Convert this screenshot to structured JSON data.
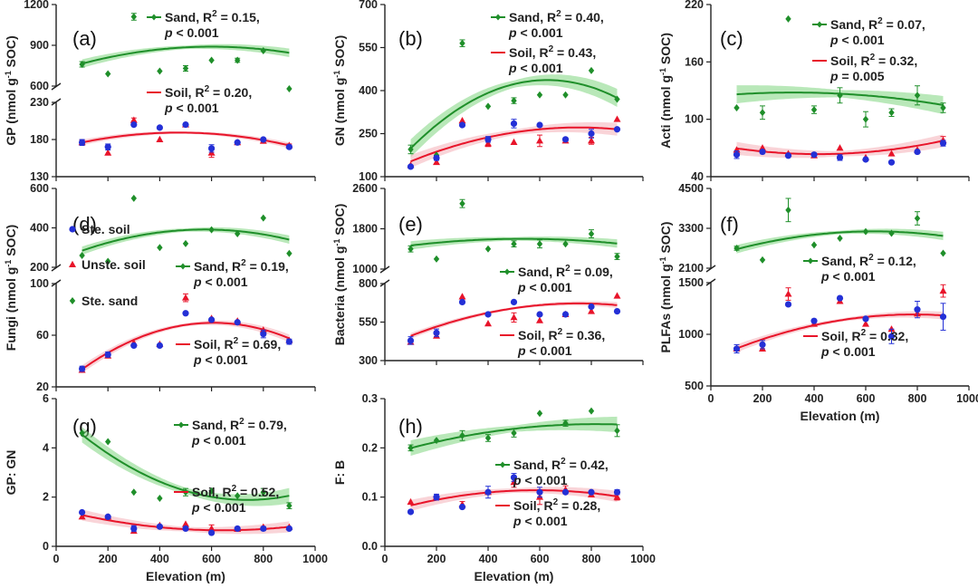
{
  "colors": {
    "soil": "#e8142a",
    "sand": "#1f8f2a",
    "ste_soil": "#2430d6",
    "band_sand": "#7fd67f",
    "band_soil": "#f4b0b8",
    "axis": "#222222"
  },
  "xaxis": {
    "label": "Elevation (m)",
    "range": [
      0,
      1000
    ],
    "ticks": [
      0,
      200,
      400,
      600,
      800,
      1000
    ]
  },
  "legend": {
    "ste_soil": "Ste. soil",
    "unste_soil": "Unste. soil",
    "ste_sand": "Ste. sand"
  },
  "chart_data": [
    {
      "type": "scatter",
      "id": "a",
      "panel_label": "(a)",
      "ylabel": "GP (nmol g-1 SOC)",
      "ylabel_main": "GP (nmol g",
      "ylabel_sup": "-1",
      "ylabel_tail": " SOC)",
      "show_xlabel": false,
      "broken": true,
      "upper": {
        "range": [
          600,
          1200
        ],
        "ticks": [
          600,
          900,
          1200
        ]
      },
      "lower": {
        "range": [
          130,
          230
        ],
        "ticks": [
          130,
          180,
          230
        ]
      },
      "x": [
        100,
        200,
        300,
        400,
        500,
        600,
        700,
        800,
        900
      ],
      "series": [
        {
          "name": "Ste. sand",
          "seg": "upper",
          "values": [
            760,
            690,
            1110,
            710,
            730,
            790,
            790,
            860,
            580
          ],
          "err": [
            20,
            0,
            25,
            0,
            20,
            0,
            15,
            0,
            0
          ]
        },
        {
          "name": "Unste. soil",
          "seg": "lower",
          "values": [
            176,
            162,
            206,
            180,
            200,
            162,
            176,
            178,
            172
          ],
          "err": [
            3,
            0,
            3,
            0,
            0,
            6,
            0,
            3,
            2
          ]
        },
        {
          "name": "Ste. soil",
          "seg": "lower",
          "values": [
            176,
            170,
            200,
            196,
            200,
            168,
            176,
            180,
            170
          ],
          "err": [
            4,
            4,
            0,
            0,
            0,
            5,
            0,
            0,
            2
          ]
        }
      ],
      "fits": [
        {
          "name": "Sand",
          "seg": "upper",
          "label": "Sand, R² = 0.15,",
          "p": "p < 0.001",
          "poly": [
            710,
            0.6,
            -0.0005
          ]
        },
        {
          "name": "Soil",
          "seg": "lower",
          "label": "Soil, R² = 0.20,",
          "p": "p < 0.001",
          "poly": [
            168,
            0.09,
            -9.5e-05
          ]
        }
      ]
    },
    {
      "type": "scatter",
      "id": "b",
      "panel_label": "(b)",
      "ylabel": "GN (nmol g-1 SOC)",
      "ylabel_main": "GN (nmol g",
      "ylabel_sup": "-1",
      "ylabel_tail": " SOC)",
      "show_xlabel": false,
      "broken": false,
      "range": [
        100,
        700
      ],
      "ticks": [
        100,
        250,
        400,
        550,
        700
      ],
      "x": [
        100,
        200,
        300,
        400,
        500,
        600,
        700,
        800,
        900
      ],
      "series": [
        {
          "name": "Ste. sand",
          "values": [
            195,
            175,
            565,
            345,
            365,
            385,
            385,
            470,
            370
          ],
          "err": [
            15,
            0,
            12,
            0,
            10,
            0,
            0,
            0,
            0
          ]
        },
        {
          "name": "Unste. soil",
          "values": [
            140,
            150,
            295,
            215,
            220,
            225,
            225,
            225,
            300
          ],
          "err": [
            0,
            0,
            0,
            10,
            0,
            20,
            0,
            12,
            0
          ]
        },
        {
          "name": "Ste. soil",
          "values": [
            135,
            165,
            280,
            230,
            285,
            280,
            230,
            250,
            265
          ],
          "err": [
            0,
            8,
            0,
            10,
            15,
            0,
            0,
            15,
            0
          ]
        }
      ],
      "fits": [
        {
          "name": "Sand",
          "label": "Sand, R² = 0.40,",
          "p": "p < 0.001",
          "poly": [
            100,
            1.07,
            -0.00085
          ]
        },
        {
          "name": "Soil",
          "label": "Soil, R² = 0.43,",
          "p": "p < 0.001",
          "poly": [
            114,
            0.42,
            -0.00028
          ]
        }
      ]
    },
    {
      "type": "scatter",
      "id": "c",
      "panel_label": "(c)",
      "ylabel": "Acti (nmol g-1 SOC)",
      "ylabel_main": "Acti (nmol g",
      "ylabel_sup": "-1",
      "ylabel_tail": " SOC)",
      "show_xlabel": false,
      "broken": false,
      "range": [
        40,
        220
      ],
      "ticks": [
        40,
        100,
        160,
        220
      ],
      "x": [
        100,
        200,
        300,
        400,
        500,
        600,
        700,
        800,
        900
      ],
      "series": [
        {
          "name": "Ste. sand",
          "values": [
            112,
            107,
            205,
            110,
            125,
            100,
            107,
            125,
            112
          ],
          "err": [
            0,
            7,
            0,
            4,
            8,
            8,
            4,
            10,
            5
          ]
        },
        {
          "name": "Unste. soil",
          "values": [
            68,
            70,
            64,
            62,
            70,
            60,
            64,
            68,
            78
          ],
          "err": [
            0,
            0,
            0,
            0,
            0,
            0,
            0,
            0,
            4
          ]
        },
        {
          "name": "Ste. soil",
          "values": [
            63,
            66,
            62,
            63,
            60,
            58,
            55,
            66,
            75
          ],
          "err": [
            4,
            0,
            0,
            0,
            3,
            0,
            0,
            0,
            3
          ]
        }
      ],
      "fits": [
        {
          "name": "Sand",
          "label": "Sand, R² = 0.07,",
          "p": "p < 0.001",
          "poly": [
            124,
            0.025,
            -3.9e-05
          ]
        },
        {
          "name": "Soil",
          "label": "Soil, R² = 0.32,",
          "p": "p = 0.005",
          "poly": [
            74,
            -0.05,
            6e-05
          ]
        }
      ]
    },
    {
      "type": "scatter",
      "id": "d",
      "panel_label": "(d)",
      "ylabel": "Fungi (nmol g-1 SOC)",
      "ylabel_main": "Fungi (nmol g",
      "ylabel_sup": "-1",
      "ylabel_tail": " SOC)",
      "show_xlabel": false,
      "broken": true,
      "upper": {
        "range": [
          200,
          600
        ],
        "ticks": [
          200,
          400,
          600
        ]
      },
      "lower": {
        "range": [
          20,
          100
        ],
        "ticks": [
          20,
          60,
          100
        ]
      },
      "x": [
        100,
        200,
        300,
        400,
        500,
        600,
        700,
        800,
        900
      ],
      "series": [
        {
          "name": "Ste. sand",
          "values": [
            260,
            230,
            550,
            300,
            320,
            390,
            370,
            450,
            270
          ],
          "seg": "upper",
          "err": [
            0,
            0,
            0,
            0,
            0,
            0,
            0,
            0,
            0
          ]
        },
        {
          "name": "Unste. soil",
          "values": [
            33,
            44,
            54,
            53,
            89,
            73,
            71,
            64,
            56
          ],
          "seg": "lower",
          "err": [
            0,
            0,
            0,
            0,
            3,
            0,
            0,
            0,
            0
          ]
        },
        {
          "name": "Ste. soil",
          "values": [
            34,
            45,
            52,
            52,
            77,
            72,
            70,
            61,
            55
          ],
          "seg": "lower",
          "err": [
            2,
            2,
            0,
            0,
            0,
            0,
            0,
            3,
            2
          ]
        }
      ],
      "fits": [
        {
          "name": "Sand",
          "seg": "upper",
          "label": "Sand, R² = 0.19,",
          "p": "p < 0.001",
          "poly": [
            234,
            0.55,
            -0.00048
          ]
        },
        {
          "name": "Soil",
          "seg": "lower",
          "label": "Soil, R² = 0.69,",
          "p": "p < 0.001",
          "poly": [
            18,
            0.17,
            -0.00014
          ]
        }
      ]
    },
    {
      "type": "scatter",
      "id": "e",
      "panel_label": "(e)",
      "ylabel": "Bacteria (nmol g-1 SOC)",
      "ylabel_main": "Bacteria (nmol g",
      "ylabel_sup": "-1",
      "ylabel_tail": " SOC)",
      "show_xlabel": false,
      "broken": true,
      "upper": {
        "range": [
          1000,
          2600
        ],
        "ticks": [
          1000,
          1800,
          2600
        ]
      },
      "lower": {
        "range": [
          300,
          800
        ],
        "ticks": [
          300,
          550,
          800
        ]
      },
      "x": [
        100,
        200,
        300,
        400,
        500,
        600,
        700,
        800,
        900
      ],
      "series": [
        {
          "name": "Ste. sand",
          "values": [
            1400,
            1200,
            2300,
            1400,
            1500,
            1500,
            1500,
            1700,
            1250
          ],
          "seg": "upper",
          "err": [
            60,
            0,
            80,
            0,
            60,
            80,
            0,
            80,
            60
          ]
        },
        {
          "name": "Unste. soil",
          "values": [
            420,
            460,
            715,
            540,
            580,
            560,
            600,
            620,
            720
          ],
          "seg": "lower",
          "err": [
            0,
            0,
            0,
            0,
            30,
            0,
            0,
            0,
            0
          ]
        },
        {
          "name": "Ste. soil",
          "values": [
            430,
            480,
            680,
            600,
            680,
            600,
            600,
            650,
            620
          ],
          "seg": "lower",
          "err": [
            25,
            25,
            0,
            0,
            0,
            0,
            0,
            0,
            0
          ]
        }
      ],
      "fits": [
        {
          "name": "Sand",
          "seg": "upper",
          "label": "Sand, R² = 0.09,",
          "p": "p < 0.001",
          "poly": [
            1400,
            0.75,
            -0.0007
          ]
        },
        {
          "name": "Soil",
          "seg": "lower",
          "label": "Soil, R² = 0.36,",
          "p": "p < 0.001",
          "poly": [
            390,
            0.75,
            -0.0005
          ]
        }
      ]
    },
    {
      "type": "scatter",
      "id": "f",
      "panel_label": "(f)",
      "ylabel": "PLFAs (nmol g-1 SOC)",
      "ylabel_main": "PLFAs (nmol g",
      "ylabel_sup": "-1",
      "ylabel_tail": " SOC)",
      "show_xlabel": true,
      "broken": true,
      "upper": {
        "range": [
          2100,
          4500
        ],
        "ticks": [
          2100,
          3300,
          4500
        ]
      },
      "lower": {
        "range": [
          500,
          1500
        ],
        "ticks": [
          500,
          1000,
          1500
        ]
      },
      "x": [
        100,
        200,
        300,
        400,
        500,
        600,
        700,
        800,
        900
      ],
      "series": [
        {
          "name": "Ste. sand",
          "values": [
            2700,
            2350,
            3850,
            2800,
            3000,
            3200,
            3150,
            3600,
            2550
          ],
          "seg": "upper",
          "err": [
            60,
            0,
            350,
            0,
            0,
            0,
            0,
            200,
            0
          ]
        },
        {
          "name": "Unste. soil",
          "values": [
            860,
            860,
            1390,
            1100,
            1320,
            1100,
            1050,
            1200,
            1420
          ],
          "seg": "lower",
          "err": [
            0,
            0,
            60,
            0,
            0,
            0,
            0,
            0,
            60
          ]
        },
        {
          "name": "Ste. soil",
          "values": [
            860,
            900,
            1290,
            1130,
            1350,
            1150,
            980,
            1240,
            1170
          ],
          "seg": "lower",
          "err": [
            40,
            40,
            0,
            0,
            0,
            0,
            70,
            80,
            130
          ]
        }
      ],
      "fits": [
        {
          "name": "Sand",
          "seg": "upper",
          "label": "Sand, R² = 0.12,",
          "p": "p < 0.001",
          "poly": [
            2450,
            2.4,
            -0.0019
          ]
        },
        {
          "name": "Soil",
          "seg": "lower",
          "label": "Soil, R² = 0.32,",
          "p": "p < 0.001",
          "poly": [
            760,
            1.1,
            -0.0007
          ]
        }
      ]
    },
    {
      "type": "scatter",
      "id": "g",
      "panel_label": "(g)",
      "ylabel": "GP: GN",
      "show_xlabel": true,
      "broken": false,
      "range": [
        0,
        6
      ],
      "ticks": [
        0,
        2,
        4,
        6
      ],
      "x": [
        100,
        200,
        300,
        400,
        500,
        600,
        700,
        800,
        900
      ],
      "series": [
        {
          "name": "Ste. sand",
          "values": [
            4.6,
            4.25,
            2.2,
            1.95,
            2.2,
            2.25,
            2.05,
            2.2,
            1.65
          ],
          "err": [
            0,
            0,
            0,
            0,
            0.15,
            0,
            0,
            0.15,
            0.12
          ]
        },
        {
          "name": "Unste. soil",
          "values": [
            1.2,
            1.2,
            0.62,
            0.85,
            0.9,
            0.72,
            0.7,
            0.78,
            0.78
          ],
          "err": [
            0,
            0,
            0,
            0,
            0,
            0.15,
            0,
            0,
            0
          ]
        },
        {
          "name": "Ste. soil",
          "values": [
            1.38,
            1.2,
            0.72,
            0.8,
            0.72,
            0.55,
            0.72,
            0.72,
            0.72
          ],
          "err": [
            0,
            0,
            0.12,
            0,
            0,
            0,
            0,
            0.08,
            0
          ]
        }
      ],
      "fits": [
        {
          "name": "Sand",
          "label": "Sand, R² = 0.79,",
          "p": "p < 0.001",
          "poly": [
            5.43,
            -0.0096,
            6.5e-06
          ]
        },
        {
          "name": "Soil",
          "label": "Soil, R² = 0.52,",
          "p": "p < 0.001",
          "poly": [
            1.52,
            -0.0027,
            2.1e-06
          ]
        }
      ]
    },
    {
      "type": "scatter",
      "id": "h",
      "panel_label": "",
      "panel_label_text": "(h)",
      "ylabel": "F: B",
      "show_xlabel": true,
      "broken": false,
      "range": [
        0.0,
        0.3
      ],
      "ticks": [
        0.0,
        0.1,
        0.2,
        0.3
      ],
      "tick_fmt": 1,
      "x": [
        100,
        200,
        300,
        400,
        500,
        600,
        700,
        800,
        900
      ],
      "series": [
        {
          "name": "Ste. sand",
          "values": [
            0.2,
            0.215,
            0.225,
            0.22,
            0.23,
            0.27,
            0.25,
            0.275,
            0.235
          ],
          "err": [
            0.006,
            0,
            0.01,
            0.007,
            0.008,
            0,
            0.006,
            0,
            0.012
          ]
        },
        {
          "name": "Unste. soil",
          "values": [
            0.09,
            0.1,
            0.085,
            0.11,
            0.13,
            0.1,
            0.115,
            0.105,
            0.1
          ],
          "err": [
            0,
            0,
            0.006,
            0,
            0.01,
            0.015,
            0.008,
            0,
            0.006
          ]
        },
        {
          "name": "Ste. soil",
          "values": [
            0.07,
            0.1,
            0.08,
            0.11,
            0.14,
            0.11,
            0.11,
            0.11,
            0.11
          ],
          "err": [
            0,
            0.006,
            0,
            0.012,
            0.008,
            0.01,
            0,
            0,
            0.005
          ]
        }
      ],
      "fits": [
        {
          "name": "Sand",
          "label": "Sand, R² = 0.42,",
          "p": "p < 0.001",
          "poly": [
            0.185,
            0.000155,
            -9.5e-08
          ]
        },
        {
          "name": "Soil",
          "label": "Soil, R² = 0.28,",
          "p": "p < 0.001",
          "poly": [
            0.069,
            0.000153,
            -1.3e-07
          ]
        }
      ]
    }
  ]
}
